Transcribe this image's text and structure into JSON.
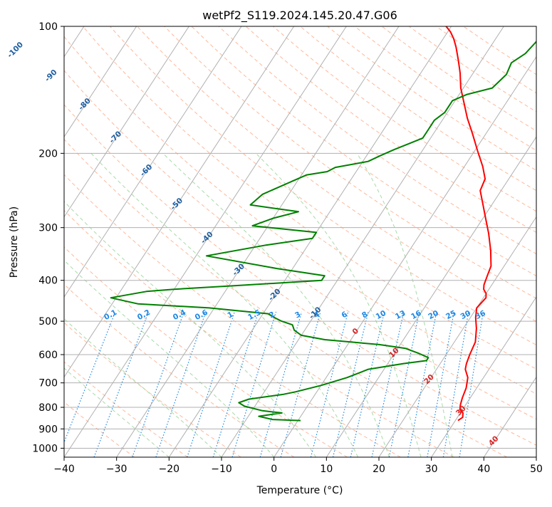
{
  "chart_data": {
    "type": "line",
    "subtype": "skew-t log-p diagram",
    "title": "wetPf2_S119.2024.145.20.47.G06",
    "xlabel": "Temperature (°C)",
    "ylabel": "Pressure (hPa)",
    "xlim": [
      -40,
      50
    ],
    "ylim": [
      1050,
      100
    ],
    "y_scale": "log",
    "grid": true,
    "x_ticks": [
      "−40",
      "−30",
      "−20",
      "−10",
      "0",
      "10",
      "20",
      "30",
      "40",
      "50"
    ],
    "y_ticks": [
      "100",
      "200",
      "300",
      "400",
      "500",
      "600",
      "700",
      "800",
      "900",
      "1000"
    ],
    "series": [
      {
        "color": "#ff0000",
        "points": [
          [
            30.5,
            860
          ],
          [
            31,
            845
          ],
          [
            30.5,
            825
          ],
          [
            29.5,
            810
          ],
          [
            29,
            790
          ],
          [
            28.5,
            760
          ],
          [
            28,
            720
          ],
          [
            27,
            680
          ],
          [
            25.5,
            650
          ],
          [
            25,
            630
          ],
          [
            24.5,
            600
          ],
          [
            24,
            560
          ],
          [
            22.5,
            520
          ],
          [
            21,
            490
          ],
          [
            20,
            465
          ],
          [
            20.5,
            440
          ],
          [
            20,
            430
          ],
          [
            19,
            420
          ],
          [
            18.5,
            410
          ],
          [
            18,
            390
          ],
          [
            17.5,
            370
          ],
          [
            15.5,
            340
          ],
          [
            13,
            310
          ],
          [
            10.5,
            285
          ],
          [
            8,
            262
          ],
          [
            6,
            245
          ],
          [
            5.5,
            230
          ],
          [
            3.5,
            215
          ],
          [
            0.5,
            197
          ],
          [
            -2.5,
            180
          ],
          [
            -5.5,
            165
          ],
          [
            -8,
            152
          ],
          [
            -10.5,
            140
          ],
          [
            -12.5,
            129
          ],
          [
            -14.5,
            120
          ],
          [
            -16.5,
            112
          ],
          [
            -18,
            107
          ],
          [
            -19.5,
            103
          ],
          [
            -21,
            100
          ]
        ]
      },
      {
        "color": "#008000",
        "points": [
          [
            0.5,
            860
          ],
          [
            -5,
            855
          ],
          [
            -8,
            840
          ],
          [
            -4,
            825
          ],
          [
            -8,
            815
          ],
          [
            -12,
            795
          ],
          [
            -13.5,
            780
          ],
          [
            -12,
            765
          ],
          [
            -6,
            745
          ],
          [
            -4,
            735
          ],
          [
            0,
            710
          ],
          [
            2,
            695
          ],
          [
            4,
            680
          ],
          [
            7,
            650
          ],
          [
            13,
            630
          ],
          [
            17,
            620
          ],
          [
            17,
            610
          ],
          [
            14.5,
            595
          ],
          [
            11.5,
            580
          ],
          [
            6,
            568
          ],
          [
            -5,
            553
          ],
          [
            -10,
            540
          ],
          [
            -12,
            525
          ],
          [
            -13,
            510
          ],
          [
            -15.5,
            500
          ],
          [
            -17,
            492
          ],
          [
            -19,
            480
          ],
          [
            -31,
            465
          ],
          [
            -45,
            455
          ],
          [
            -51,
            440
          ],
          [
            -45,
            425
          ],
          [
            -40,
            420
          ],
          [
            -29,
            412
          ],
          [
            -13,
            400
          ],
          [
            -13,
            390
          ],
          [
            -23,
            375
          ],
          [
            -38,
            350
          ],
          [
            -28,
            330
          ],
          [
            -20,
            318
          ],
          [
            -20,
            308
          ],
          [
            -33,
            297
          ],
          [
            -30,
            285
          ],
          [
            -26,
            275
          ],
          [
            -36,
            265
          ],
          [
            -35,
            250
          ],
          [
            -31,
            233
          ],
          [
            -29,
            225
          ],
          [
            -25.5,
            221
          ],
          [
            -24.5,
            216
          ],
          [
            -19,
            209
          ],
          [
            -17.5,
            203
          ],
          [
            -15.5,
            196
          ],
          [
            -13.5,
            190
          ],
          [
            -11.5,
            184
          ],
          [
            -11.5,
            175
          ],
          [
            -11.5,
            167
          ],
          [
            -10.5,
            160
          ],
          [
            -10.5,
            150
          ],
          [
            -8.5,
            145
          ],
          [
            -4.5,
            140
          ],
          [
            -3.5,
            130
          ],
          [
            -4,
            122
          ],
          [
            -2.5,
            116
          ],
          [
            -2,
            110
          ],
          [
            -1.5,
            104
          ],
          [
            -1.5,
            100
          ]
        ]
      }
    ],
    "isotherm_labels": [
      "-100",
      "-90",
      "-80",
      "-70",
      "-60",
      "-50",
      "-40",
      "-30",
      "-20",
      "-10",
      "0",
      "10",
      "20",
      "30",
      "40"
    ],
    "mixing_ratio_labels": [
      "0.1",
      "0.2",
      "0.4",
      "0.6",
      "1",
      "1.5",
      "2",
      "3",
      "4",
      "6",
      "8",
      "10",
      "13",
      "16",
      "20",
      "25",
      "30",
      "36"
    ],
    "colors": {
      "temperature": "#ff0000",
      "dewpoint": "#008000",
      "isotherm_cold_label": "#1f5f9f",
      "isotherm_warm_label": "#d62728",
      "mixing_ratio": "#1e88e5",
      "dry_adiabat": "#ffa07a",
      "moist_adiabat": "#98d498",
      "grid": "#b0b0b0"
    }
  }
}
